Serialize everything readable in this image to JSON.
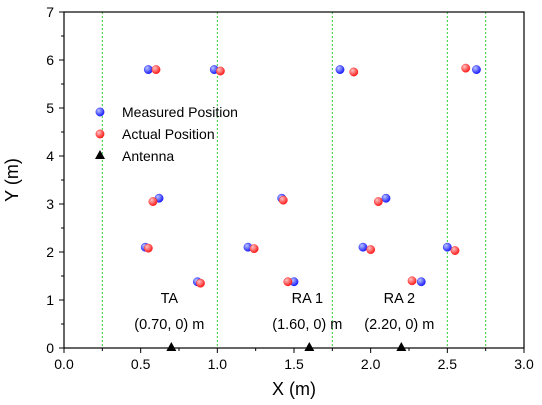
{
  "chart_data": {
    "type": "scatter",
    "xlabel": "X (m)",
    "ylabel": "Y (m)",
    "xlim": [
      0,
      3
    ],
    "ylim": [
      0,
      7
    ],
    "xticks": [
      "0.0",
      "0.5",
      "1.0",
      "1.5",
      "2.0",
      "2.5",
      "3.0"
    ],
    "yticks": [
      "0",
      "1",
      "2",
      "3",
      "4",
      "5",
      "6",
      "7"
    ],
    "gridlines_x": [
      0.25,
      1.0,
      1.75,
      2.5,
      2.75
    ],
    "gridlines_y": [
      0
    ],
    "grid_color": "#33cc33",
    "legend_position": "upper-left",
    "series": [
      {
        "name": "Measured Position",
        "marker": "circle",
        "color": "#1a1aff",
        "points": [
          [
            0.55,
            5.8
          ],
          [
            0.98,
            5.8
          ],
          [
            1.8,
            5.8
          ],
          [
            2.69,
            5.8
          ],
          [
            0.62,
            3.12
          ],
          [
            1.42,
            3.12
          ],
          [
            2.1,
            3.12
          ],
          [
            0.53,
            2.1
          ],
          [
            1.2,
            2.1
          ],
          [
            1.95,
            2.1
          ],
          [
            2.5,
            2.1
          ],
          [
            0.87,
            1.38
          ],
          [
            1.5,
            1.38
          ],
          [
            2.33,
            1.38
          ]
        ]
      },
      {
        "name": "Actual Position",
        "marker": "circle",
        "color": "#ff1a1a",
        "points": [
          [
            0.6,
            5.8
          ],
          [
            1.02,
            5.77
          ],
          [
            1.89,
            5.75
          ],
          [
            2.62,
            5.83
          ],
          [
            0.58,
            3.05
          ],
          [
            1.43,
            3.08
          ],
          [
            2.05,
            3.05
          ],
          [
            0.55,
            2.08
          ],
          [
            1.24,
            2.07
          ],
          [
            2.0,
            2.05
          ],
          [
            2.55,
            2.03
          ],
          [
            0.89,
            1.35
          ],
          [
            1.46,
            1.38
          ],
          [
            2.27,
            1.4
          ]
        ]
      },
      {
        "name": "Antenna",
        "marker": "triangle",
        "color": "#000000",
        "points": [
          [
            0.7,
            0
          ],
          [
            1.6,
            0
          ],
          [
            2.2,
            0
          ]
        ]
      }
    ],
    "annotations": [
      {
        "label": "TA",
        "coord": "(0.70, 0) m",
        "x": 0.7
      },
      {
        "label": "RA 1",
        "coord": "(1.60, 0) m",
        "x": 1.6
      },
      {
        "label": "RA 2",
        "coord": "(2.20, 0) m",
        "x": 2.2
      }
    ]
  }
}
